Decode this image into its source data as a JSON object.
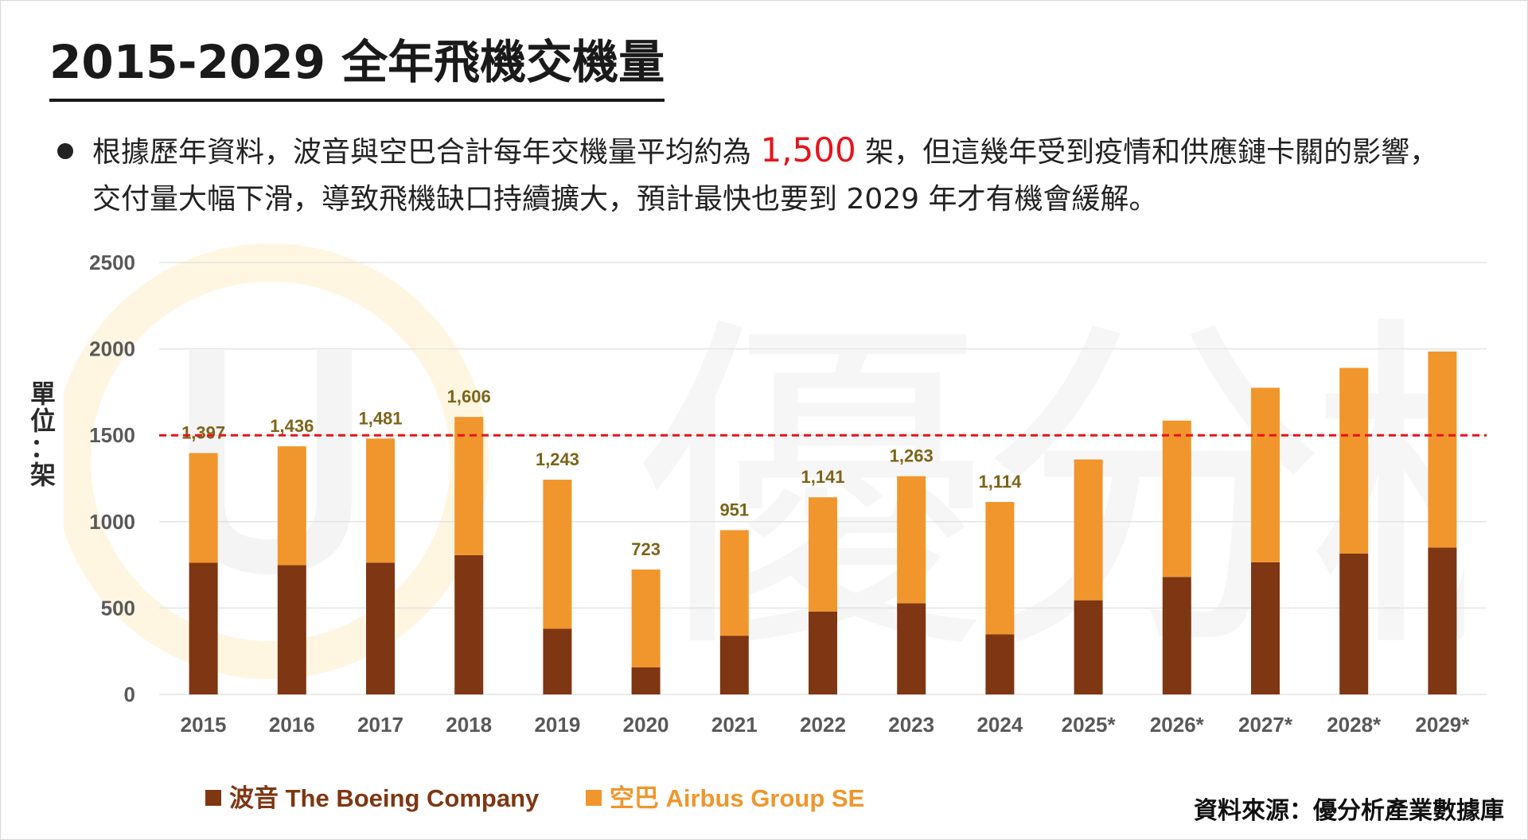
{
  "title": "2015-2029 全年飛機交機量",
  "description": {
    "line1_before": "根據歷年資料，波音與空巴合計每年交機量平均約為 ",
    "highlight": "1,500",
    "line1_after": " 架，但這幾年受到疫情和供應鏈卡關的影響，",
    "line2": "交付量大幅下滑，導致飛機缺口持續擴大，預計最快也要到 2029 年才有機會緩解。"
  },
  "y_unit": "單位：架",
  "source": "資料來源：優分析產業數據庫",
  "colors": {
    "boeing": "#7f3612",
    "airbus": "#f0962c",
    "total_label": "#7d6418",
    "reference_line": "#e8121b",
    "watermark": "#f8f8f8"
  },
  "watermark_icon": "youfenxi-logo-icon",
  "chart_data": {
    "type": "bar",
    "stacked": true,
    "categories": [
      "2015",
      "2016",
      "2017",
      "2018",
      "2019",
      "2020",
      "2021",
      "2022",
      "2023",
      "2024",
      "2025*",
      "2026*",
      "2027*",
      "2028*",
      "2029*"
    ],
    "series": [
      {
        "name": "波音 The Boeing Company",
        "color": "#7f3612",
        "values": [
          762,
          748,
          763,
          806,
          380,
          157,
          340,
          480,
          528,
          348,
          545,
          680,
          765,
          815,
          850
        ]
      },
      {
        "name": "空巴 Airbus Group SE",
        "color": "#f0962c",
        "values": [
          635,
          688,
          718,
          800,
          863,
          566,
          611,
          661,
          735,
          766,
          815,
          905,
          1010,
          1075,
          1135
        ]
      }
    ],
    "total_labels": [
      "1,397",
      "1,436",
      "1,481",
      "1,606",
      "1,243",
      "723",
      "951",
      "1,141",
      "1,263",
      "1,114",
      "",
      "",
      "",
      "",
      ""
    ],
    "reference_line": 1500,
    "y_ticks": [
      "0",
      "500",
      "1000",
      "1500",
      "2000",
      "2500"
    ],
    "ylim": [
      0,
      2500
    ],
    "grid": true,
    "legend_position": "bottom-left"
  }
}
